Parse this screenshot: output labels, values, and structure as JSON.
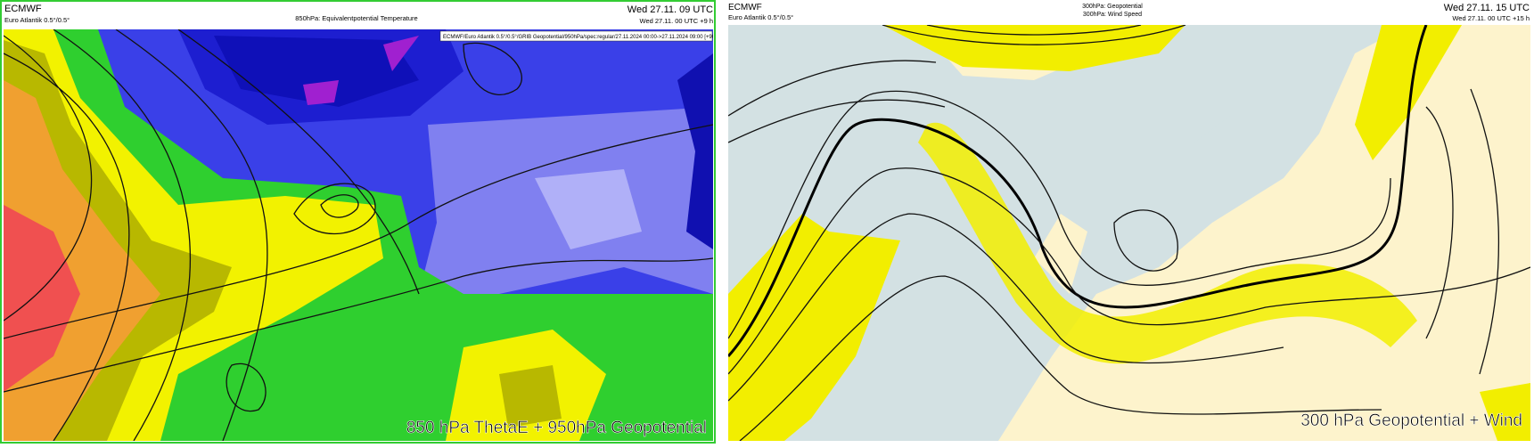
{
  "left": {
    "header": {
      "source": "ECMWF",
      "model": "Euro Atlantik 0.5°/0.5°",
      "title": "850hPa: Equivalentpotential Temperature",
      "valid": "Wed 27.11. 09 UTC",
      "run": "Wed 27.11. 00 UTC +9 h"
    },
    "info": "ECMWF/Euro Atlantik 0.5°/0.5°/GRIB Geopotential/950hPa/spec:regular/27.11.2024 00:00->27.11.2024 09:00 [+9h]",
    "caption": "850 hPa ThetaE + 950hPa Geopotential"
  },
  "right": {
    "header": {
      "source": "ECMWF",
      "model": "Euro Atlantik 0.5°/0.5°",
      "title": "300hPa: Geopotential",
      "subtitle": "300hPa: Wind Speed",
      "valid": "Wed 27.11. 15 UTC",
      "run": "Wed 27.11. 00 UTC +15 h"
    },
    "caption": "300 hPa Geopotential + Wind"
  }
}
